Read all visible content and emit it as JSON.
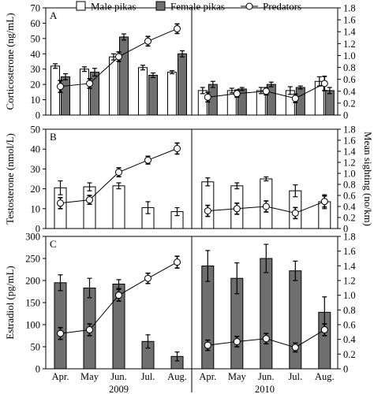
{
  "legend": {
    "male": "Male pikas",
    "female": "Female pikas",
    "predators": "Predators"
  },
  "x_axis": {
    "months": [
      "Apr.",
      "May",
      "Jun.",
      "Jul.",
      "Aug.",
      "Apr.",
      "May",
      "Jun.",
      "Jul.",
      "Aug."
    ],
    "years": [
      "2009",
      "2010"
    ]
  },
  "right_axis_title": "Mean sighting (no/km)",
  "colors": {
    "female_bar": "#6f6f6f",
    "male_bar": "#ffffff",
    "line": "#000000"
  },
  "chart_data": [
    {
      "type": "bar",
      "panel": "A",
      "ylabel": "Corticosterone (ng/mL)",
      "ylim": [
        0,
        70
      ],
      "yticks": [
        0,
        10,
        20,
        30,
        40,
        50,
        60,
        70
      ],
      "y2label": "",
      "y2lim": [
        0,
        1.8
      ],
      "y2ticks": [
        "0",
        "0.2",
        "0.4",
        "0.6",
        "0.8",
        "1.0",
        "1.2",
        "1.4",
        "1.6",
        "1.8"
      ],
      "categories": [
        "Apr. 2009",
        "May 2009",
        "Jun. 2009",
        "Jul. 2009",
        "Aug. 2009",
        "Apr. 2010",
        "May 2010",
        "Jun. 2010",
        "Jul. 2010",
        "Aug. 2010"
      ],
      "series": [
        {
          "name": "Male pikas",
          "values": [
            32,
            30,
            38,
            31,
            28,
            16,
            16,
            16,
            16,
            22
          ],
          "errors": [
            1.5,
            1.5,
            2,
            1.5,
            1,
            2,
            1.5,
            2,
            2.5,
            3
          ]
        },
        {
          "name": "Female pikas",
          "values": [
            25,
            28,
            51,
            26,
            40,
            20,
            17,
            20,
            18,
            16
          ],
          "errors": [
            2,
            2.5,
            2,
            1.5,
            2,
            2,
            1,
            1.5,
            1,
            2
          ]
        },
        {
          "name": "Predators",
          "axis": "right",
          "values": [
            0.48,
            0.53,
            0.98,
            1.24,
            1.45,
            0.3,
            0.36,
            0.4,
            0.28,
            0.53
          ],
          "errors": [
            0.1,
            0.08,
            0.08,
            0.08,
            0.08,
            0.08,
            0.06,
            0.06,
            0.07,
            0.12
          ]
        }
      ]
    },
    {
      "type": "bar",
      "panel": "B",
      "ylabel": "Testosterone (nmol/L)",
      "ylim": [
        0,
        50
      ],
      "yticks": [
        0,
        10,
        20,
        30,
        40,
        50
      ],
      "y2label": "Mean sighting (no/km)",
      "y2lim": [
        0,
        1.8
      ],
      "y2ticks": [
        "0",
        "0.2",
        "0.4",
        "0.6",
        "0.8",
        "1.0",
        "1.2",
        "1.4",
        "1.6",
        "1.8"
      ],
      "categories": [
        "Apr. 2009",
        "May 2009",
        "Jun. 2009",
        "Jul. 2009",
        "Aug. 2009",
        "Apr. 2010",
        "May 2010",
        "Jun. 2010",
        "Jul. 2010",
        "Aug. 2010"
      ],
      "series": [
        {
          "name": "Male pikas",
          "values": [
            20.5,
            21,
            21.5,
            10.5,
            8.5,
            23.5,
            21.5,
            25,
            19,
            13.5
          ],
          "errors": [
            3.5,
            2,
            1.5,
            3,
            2,
            2,
            1.5,
            1,
            3,
            3.5
          ]
        },
        {
          "name": "Predators",
          "axis": "right",
          "values": [
            0.46,
            0.52,
            1.02,
            1.24,
            1.45,
            0.32,
            0.36,
            0.4,
            0.28,
            0.49
          ],
          "errors": [
            0.1,
            0.08,
            0.08,
            0.07,
            0.1,
            0.1,
            0.1,
            0.1,
            0.1,
            0.1
          ]
        }
      ]
    },
    {
      "type": "bar",
      "panel": "C",
      "ylabel": "Estradiol (pg/mL)",
      "ylim": [
        0,
        300
      ],
      "yticks": [
        0,
        50,
        100,
        150,
        200,
        250,
        300
      ],
      "y2label": "",
      "y2lim": [
        0,
        1.8
      ],
      "y2ticks": [
        "0",
        "0.2",
        "0.4",
        "0.6",
        "0.8",
        "1.0",
        "1.2",
        "1.4",
        "1.6",
        "1.8"
      ],
      "categories": [
        "Apr. 2009",
        "May 2009",
        "Jun. 2009",
        "Jul. 2009",
        "Aug. 2009",
        "Apr. 2010",
        "May 2010",
        "Jun. 2010",
        "Jul. 2010",
        "Aug. 2010"
      ],
      "series": [
        {
          "name": "Female pikas",
          "values": [
            195,
            183,
            192,
            62,
            28,
            233,
            205,
            250,
            222,
            128
          ],
          "errors": [
            18,
            22,
            10,
            15,
            10,
            35,
            35,
            32,
            22,
            35
          ]
        },
        {
          "name": "Predators",
          "axis": "right",
          "values": [
            0.48,
            0.53,
            1.0,
            1.23,
            1.45,
            0.32,
            0.37,
            0.41,
            0.29,
            0.53
          ],
          "errors": [
            0.08,
            0.08,
            0.08,
            0.07,
            0.08,
            0.07,
            0.07,
            0.07,
            0.06,
            0.08
          ]
        }
      ]
    }
  ]
}
